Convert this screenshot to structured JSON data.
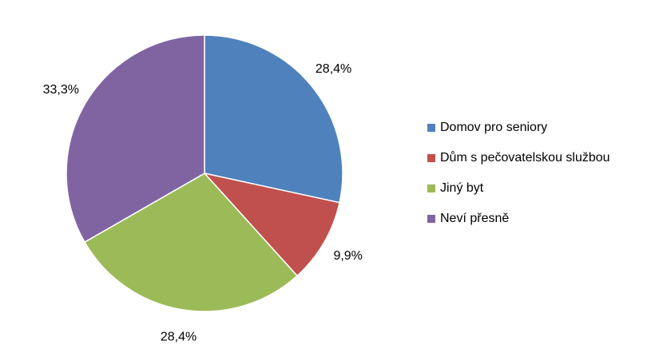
{
  "chart_data": {
    "type": "pie",
    "categories": [
      "Domov pro seniory",
      "Dům s pečovatelskou službou",
      "Jiný byt",
      "Neví přesně"
    ],
    "values": [
      28.4,
      9.9,
      28.4,
      33.3
    ],
    "value_labels": [
      "28,4%",
      "9,9%",
      "28,4%",
      "33,3%"
    ],
    "colors": [
      "#4f81bd",
      "#c0504d",
      "#9bbb59",
      "#8064a2"
    ],
    "legend": "right"
  }
}
